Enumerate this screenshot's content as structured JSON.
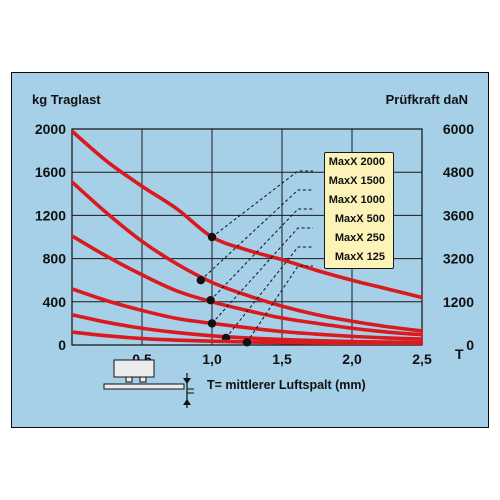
{
  "page": {
    "panel_color": "#a6cfe8",
    "curve_color": "#d91a1f",
    "marker_color": "#111111",
    "legend_color": "#fbf3b8"
  },
  "chart_data": {
    "type": "line",
    "ylabel": "kg Traglast",
    "y2label": "Prüfkraft daN",
    "xunit": "T",
    "caption": "T= mittlerer Luftspalt (mm)",
    "x_ticks": [
      "0,5",
      "1,0",
      "1,5",
      "2,0",
      "2,5"
    ],
    "x_tick_values": [
      0.5,
      1.0,
      1.5,
      2.0,
      2.5
    ],
    "xlim": [
      0,
      2.5
    ],
    "y_ticks": [
      "2000",
      "1600",
      "1200",
      "800",
      "400",
      "0"
    ],
    "y_tick_values": [
      2000,
      1600,
      1200,
      800,
      400,
      0
    ],
    "ylim": [
      0,
      2000
    ],
    "y2_ticks": [
      "6000",
      "4800",
      "3600",
      "3200",
      "1200",
      "0"
    ],
    "grid": true,
    "legend_position": "top-right",
    "series": [
      {
        "name": "MaxX 2000",
        "x": [
          0,
          0.25,
          0.5,
          0.75,
          1.0,
          1.25,
          1.5,
          1.75,
          2.0,
          2.25,
          2.5
        ],
        "values": [
          1980,
          1700,
          1470,
          1260,
          1000,
          880,
          790,
          690,
          600,
          520,
          440
        ],
        "marker": [
          1.0,
          1000
        ]
      },
      {
        "name": "MaxX 1500",
        "x": [
          0,
          0.25,
          0.5,
          0.75,
          1.0,
          1.25,
          1.5,
          1.75,
          2.0,
          2.25,
          2.5
        ],
        "values": [
          1510,
          1220,
          960,
          750,
          580,
          460,
          360,
          280,
          220,
          170,
          130
        ],
        "marker": [
          0.92,
          600
        ]
      },
      {
        "name": "MaxX 1000",
        "x": [
          0,
          0.25,
          0.5,
          0.75,
          1.0,
          1.25,
          1.5,
          1.75,
          2.0,
          2.25,
          2.5
        ],
        "values": [
          1010,
          820,
          650,
          500,
          400,
          320,
          250,
          200,
          155,
          120,
          95
        ],
        "marker": [
          0.99,
          415
        ]
      },
      {
        "name": "MaxX 500",
        "x": [
          0,
          0.25,
          0.5,
          0.75,
          1.0,
          1.25,
          1.5,
          1.75,
          2.0,
          2.25,
          2.5
        ],
        "values": [
          520,
          410,
          320,
          245,
          200,
          160,
          125,
          100,
          80,
          65,
          55
        ],
        "marker": [
          1.0,
          200
        ]
      },
      {
        "name": "MaxX 250",
        "x": [
          0,
          0.25,
          0.5,
          0.75,
          1.0,
          1.25,
          1.5,
          1.75,
          2.0,
          2.25,
          2.5
        ],
        "values": [
          280,
          210,
          155,
          115,
          85,
          65,
          50,
          40,
          32,
          27,
          23
        ],
        "marker": [
          1.1,
          65
        ]
      },
      {
        "name": "MaxX 125",
        "x": [
          0,
          0.25,
          0.5,
          0.75,
          1.0,
          1.25,
          1.5,
          1.75,
          2.0,
          2.25,
          2.5
        ],
        "values": [
          120,
          85,
          60,
          45,
          35,
          28,
          22,
          18,
          15,
          12,
          10
        ],
        "marker": [
          1.25,
          25
        ]
      }
    ]
  }
}
